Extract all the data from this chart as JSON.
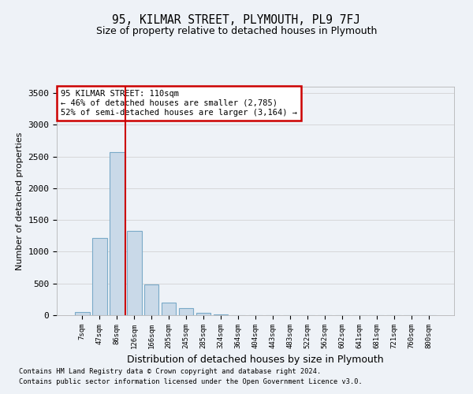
{
  "title": "95, KILMAR STREET, PLYMOUTH, PL9 7FJ",
  "subtitle": "Size of property relative to detached houses in Plymouth",
  "xlabel": "Distribution of detached houses by size in Plymouth",
  "ylabel": "Number of detached properties",
  "bar_values": [
    50,
    1220,
    2570,
    1330,
    490,
    195,
    110,
    35,
    15,
    5,
    2,
    1,
    1,
    1,
    1,
    1,
    1,
    1,
    1,
    1,
    1
  ],
  "bar_labels": [
    "7sqm",
    "47sqm",
    "86sqm",
    "126sqm",
    "166sqm",
    "205sqm",
    "245sqm",
    "285sqm",
    "324sqm",
    "364sqm",
    "404sqm",
    "443sqm",
    "483sqm",
    "522sqm",
    "562sqm",
    "602sqm",
    "641sqm",
    "681sqm",
    "721sqm",
    "760sqm",
    "800sqm"
  ],
  "bar_color": "#c9d9e8",
  "bar_edge_color": "#7aaac8",
  "vline_x": 2.5,
  "vline_color": "#cc0000",
  "annotation_title": "95 KILMAR STREET: 110sqm",
  "annotation_line1": "← 46% of detached houses are smaller (2,785)",
  "annotation_line2": "52% of semi-detached houses are larger (3,164) →",
  "annotation_box_color": "#cc0000",
  "ylim": [
    0,
    3600
  ],
  "yticks": [
    0,
    500,
    1000,
    1500,
    2000,
    2500,
    3000,
    3500
  ],
  "footer_line1": "Contains HM Land Registry data © Crown copyright and database right 2024.",
  "footer_line2": "Contains public sector information licensed under the Open Government Licence v3.0.",
  "background_color": "#eef2f7",
  "plot_bg_color": "#eef2f7"
}
